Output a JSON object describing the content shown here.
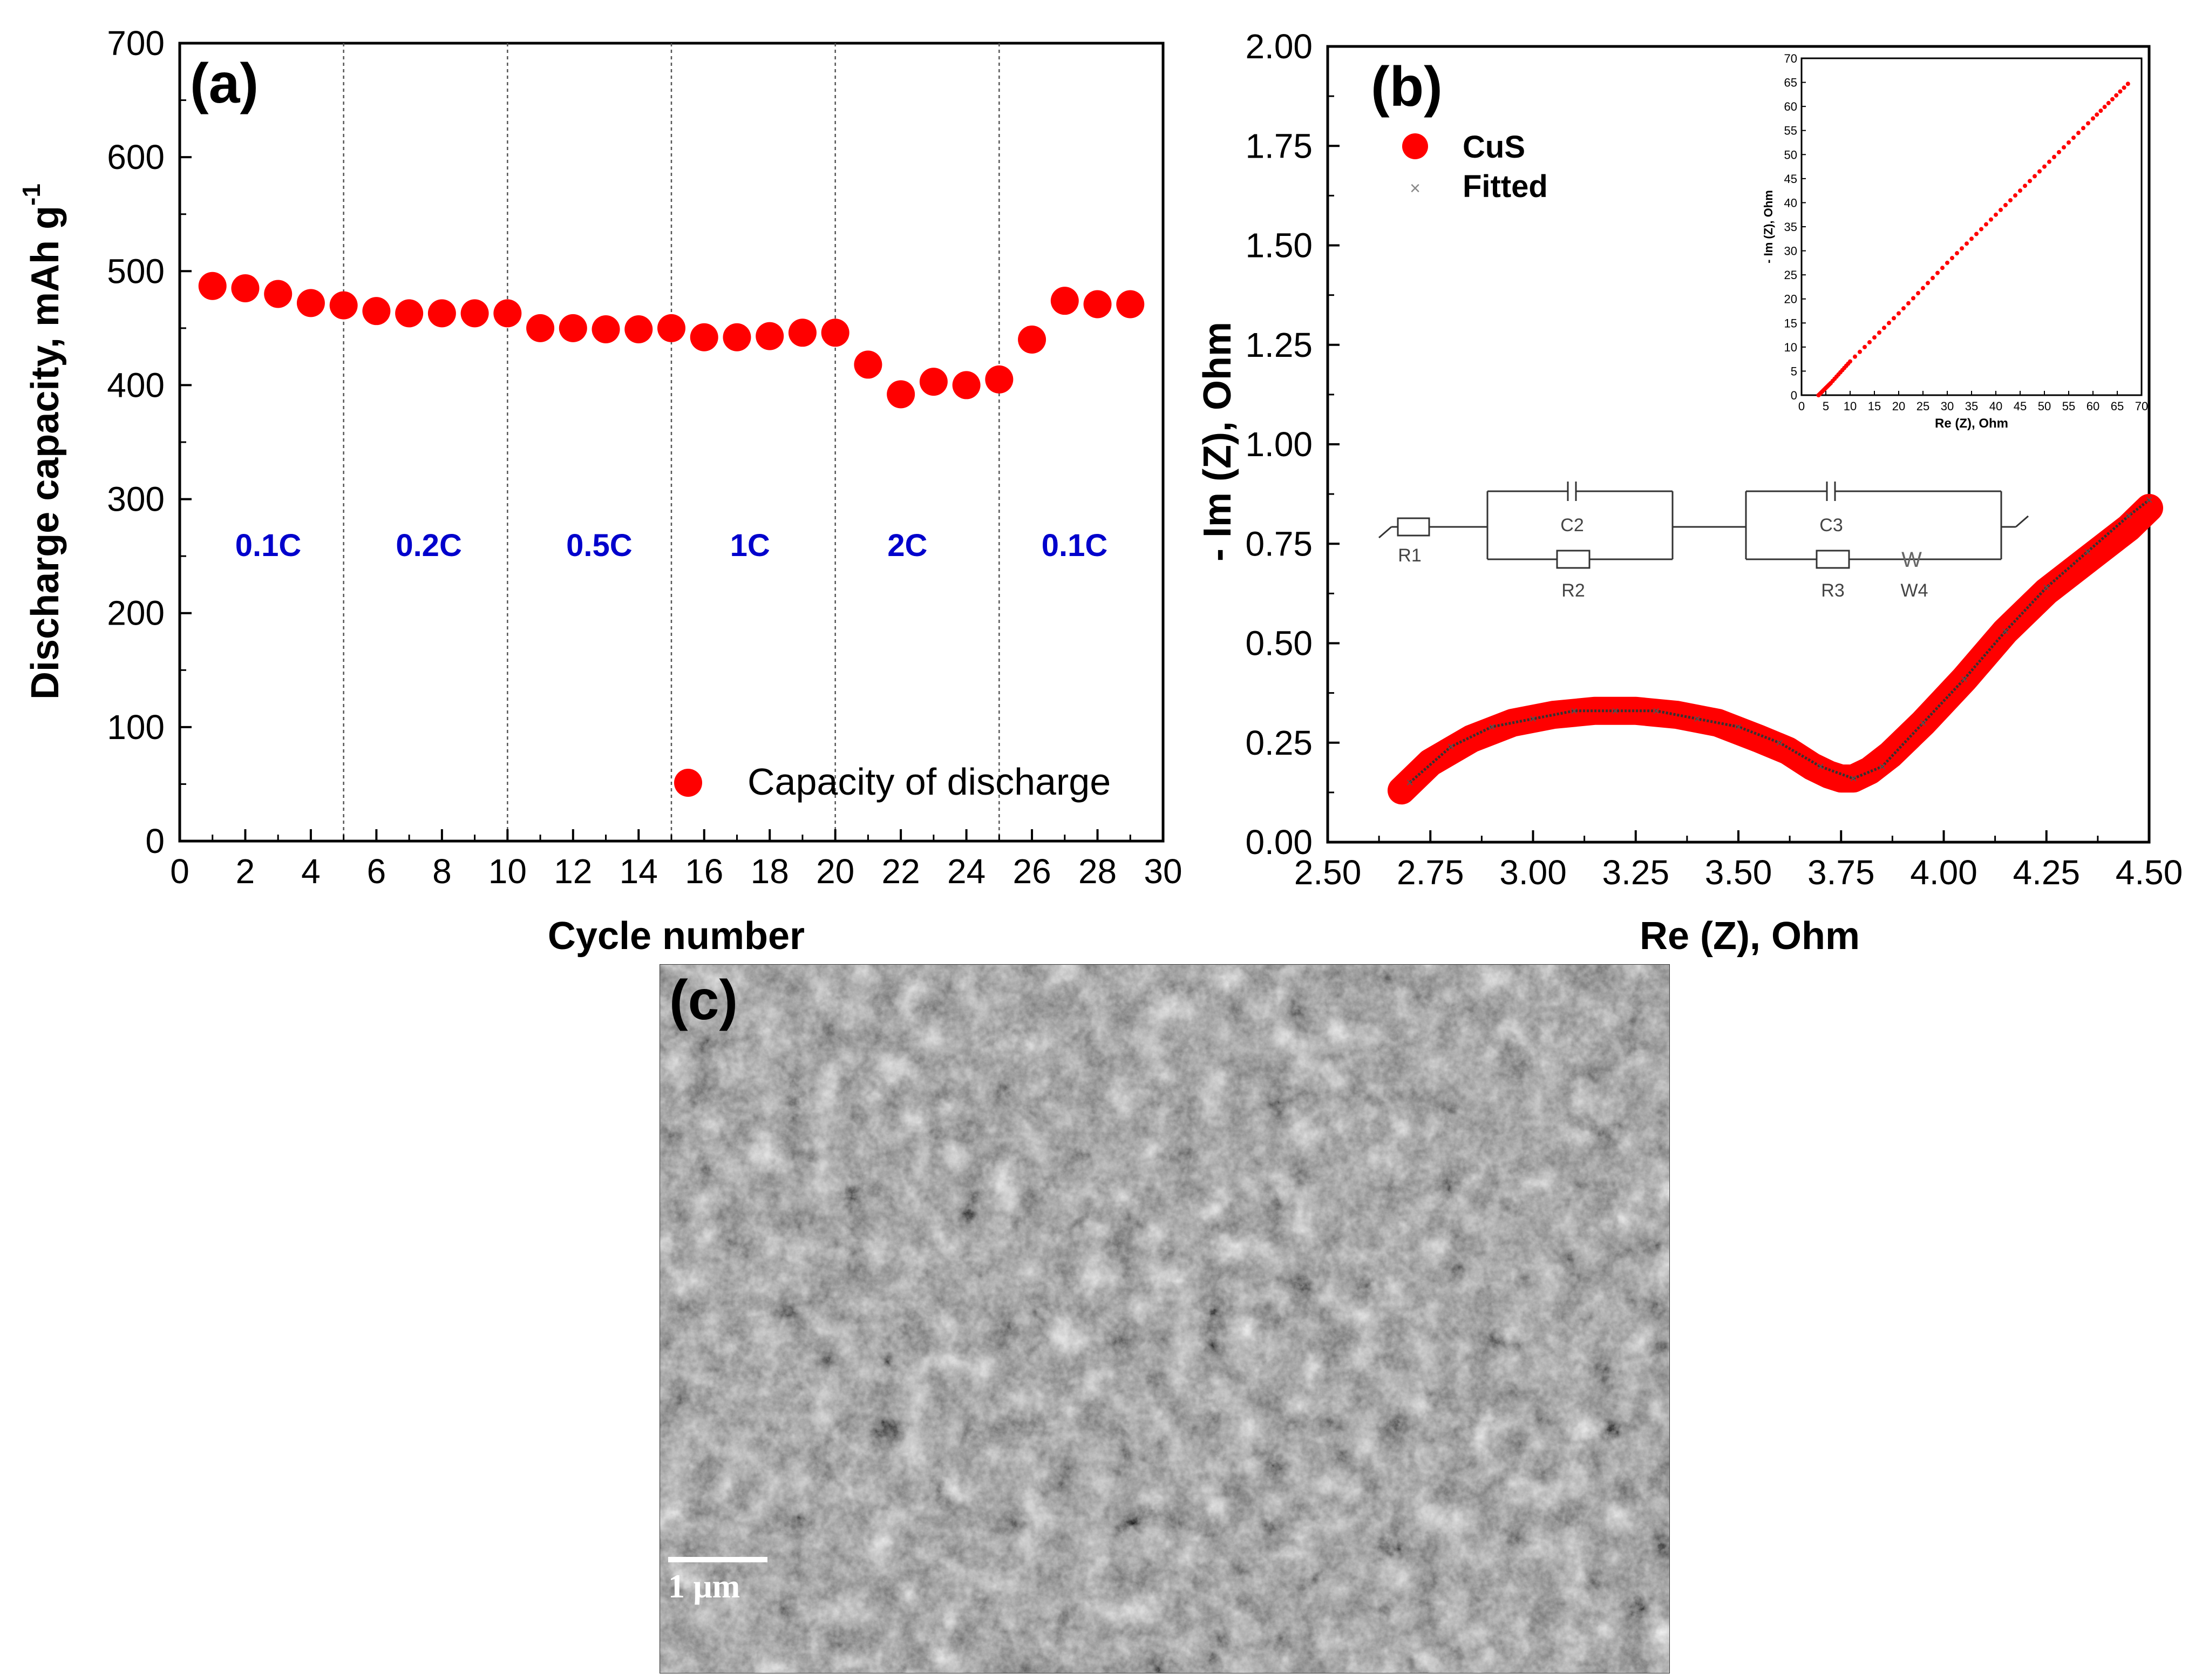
{
  "chart_data": [
    {
      "type": "scatter",
      "panel_label": "(a)",
      "xlabel": "Cycle number",
      "ylabel": "Discharge capacity, mAh g",
      "ylabel_sup": "-1",
      "xlim": [
        0,
        30
      ],
      "ylim": [
        0,
        700
      ],
      "x_ticks": [
        "0",
        "2",
        "4",
        "6",
        "8",
        "10",
        "12",
        "14",
        "16",
        "18",
        "20",
        "22",
        "24",
        "26",
        "28",
        "30"
      ],
      "y_ticks": [
        "0",
        "100",
        "200",
        "300",
        "400",
        "500",
        "600",
        "700"
      ],
      "divider_cycles": [
        5,
        10,
        15,
        20,
        25
      ],
      "rate_labels": [
        {
          "text": "0.1C",
          "x": 2.7
        },
        {
          "text": "0.2C",
          "x": 7.6
        },
        {
          "text": "0.5C",
          "x": 12.8
        },
        {
          "text": "1C",
          "x": 17.4
        },
        {
          "text": "2C",
          "x": 22.2
        },
        {
          "text": "0.1C",
          "x": 27.3
        }
      ],
      "legend": [
        "Capacity of discharge"
      ],
      "series": [
        {
          "name": "Capacity of discharge",
          "color": "#ff0000",
          "x": [
            1,
            2,
            3,
            4,
            5,
            6,
            7,
            8,
            9,
            10,
            11,
            12,
            13,
            14,
            15,
            16,
            17,
            18,
            19,
            20,
            21,
            22,
            23,
            24,
            25,
            26,
            27,
            28,
            29
          ],
          "y": [
            487,
            485,
            480,
            472,
            470,
            465,
            463,
            463,
            463,
            463,
            450,
            450,
            449,
            449,
            450,
            442,
            442,
            443,
            446,
            446,
            418,
            392,
            403,
            400,
            405,
            440,
            474,
            471,
            471
          ]
        }
      ]
    },
    {
      "type": "scatter",
      "panel_label": "(b)",
      "xlabel": "Re (Z), Ohm",
      "ylabel": "- Im (Z), Ohm",
      "xlim": [
        2.5,
        4.5
      ],
      "ylim": [
        0,
        2.0
      ],
      "x_ticks": [
        "2.50",
        "2.75",
        "3.00",
        "3.25",
        "3.50",
        "3.75",
        "4.00",
        "4.25",
        "4.50"
      ],
      "y_ticks": [
        "0.00",
        "0.25",
        "0.50",
        "0.75",
        "1.00",
        "1.25",
        "1.50",
        "1.75",
        "2.00"
      ],
      "legend": [
        "CuS",
        "Fitted"
      ],
      "series": [
        {
          "name": "CuS",
          "color": "#ff0000",
          "marker": "circle",
          "description": "dense Nyquist semicircle followed by linear Warburg tail",
          "x": [
            2.68,
            2.75,
            2.85,
            2.95,
            3.05,
            3.15,
            3.25,
            3.35,
            3.45,
            3.55,
            3.62,
            3.68,
            3.72,
            3.75,
            3.78,
            3.82,
            3.87,
            3.95,
            4.05,
            4.15,
            4.25,
            4.35,
            4.45,
            4.5
          ],
          "y": [
            0.13,
            0.2,
            0.26,
            0.3,
            0.32,
            0.33,
            0.33,
            0.32,
            0.3,
            0.26,
            0.23,
            0.19,
            0.17,
            0.16,
            0.16,
            0.18,
            0.22,
            0.3,
            0.41,
            0.53,
            0.63,
            0.71,
            0.79,
            0.84
          ]
        },
        {
          "name": "Fitted",
          "color": "#333333",
          "marker": "x",
          "x": [
            2.7,
            2.8,
            2.9,
            3.0,
            3.1,
            3.2,
            3.3,
            3.4,
            3.5,
            3.6,
            3.7,
            3.78,
            3.85,
            3.95,
            4.05,
            4.15,
            4.25,
            4.35,
            4.45,
            4.5
          ],
          "y": [
            0.15,
            0.24,
            0.29,
            0.31,
            0.33,
            0.33,
            0.33,
            0.31,
            0.29,
            0.25,
            0.19,
            0.16,
            0.19,
            0.3,
            0.41,
            0.53,
            0.64,
            0.73,
            0.82,
            0.86
          ]
        }
      ],
      "circuit": {
        "elements": [
          "C2",
          "R1",
          "R2",
          "C3",
          "R3",
          "W4"
        ]
      },
      "inset": {
        "xlabel": "Re (Z), Ohm",
        "ylabel": "- Im (Z), Ohm",
        "xlim": [
          0,
          70
        ],
        "ylim": [
          0,
          70
        ],
        "x_ticks": [
          "0",
          "5",
          "10",
          "15",
          "20",
          "25",
          "30",
          "35",
          "40",
          "45",
          "50",
          "55",
          "60",
          "65",
          "70"
        ],
        "y_ticks": [
          "0",
          "5",
          "10",
          "15",
          "20",
          "25",
          "30",
          "35",
          "40",
          "45",
          "50",
          "55",
          "60",
          "65",
          "70"
        ],
        "series": [
          {
            "name": "CuS",
            "color": "#ff0000",
            "x": [
              3.5,
              6,
              10,
              20,
              30,
              40,
              50,
              60,
              68
            ],
            "y": [
              0,
              2.5,
              7,
              17,
              27.5,
              37.5,
              47.5,
              57.5,
              65.5
            ]
          }
        ]
      }
    }
  ],
  "panel_c": {
    "label": "(c)",
    "scale_bar": "1 μm"
  },
  "colors": {
    "marker": "#ff0000",
    "rate_label": "#0000cc",
    "axis": "#000000"
  }
}
